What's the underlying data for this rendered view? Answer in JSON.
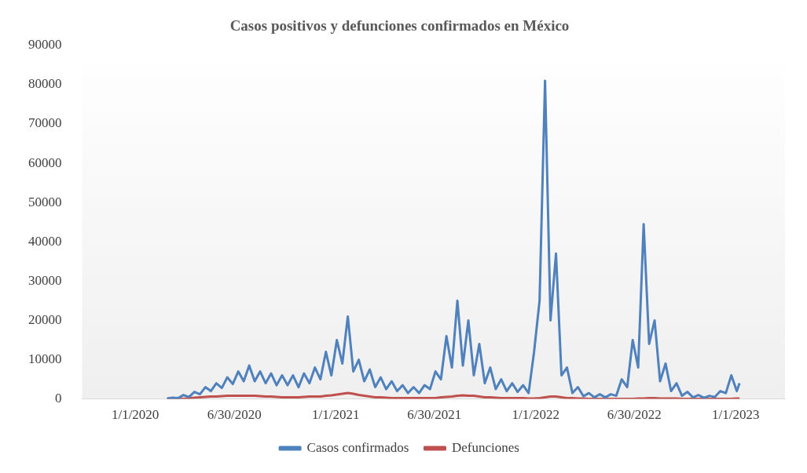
{
  "chart_data": {
    "type": "line",
    "title": "Casos positivos y defunciones confirmados en México",
    "x": [
      "2020-02-28",
      "2020-03-09",
      "2020-03-19",
      "2020-03-29",
      "2020-04-08",
      "2020-04-18",
      "2020-04-28",
      "2020-05-08",
      "2020-05-18",
      "2020-05-28",
      "2020-06-07",
      "2020-06-17",
      "2020-06-27",
      "2020-07-07",
      "2020-07-17",
      "2020-07-27",
      "2020-08-06",
      "2020-08-16",
      "2020-08-26",
      "2020-09-05",
      "2020-09-15",
      "2020-09-25",
      "2020-10-05",
      "2020-10-15",
      "2020-10-25",
      "2020-11-04",
      "2020-11-14",
      "2020-11-24",
      "2020-12-04",
      "2020-12-14",
      "2020-12-24",
      "2021-01-03",
      "2021-01-13",
      "2021-01-23",
      "2021-02-02",
      "2021-02-12",
      "2021-02-22",
      "2021-03-04",
      "2021-03-14",
      "2021-03-24",
      "2021-04-03",
      "2021-04-13",
      "2021-04-23",
      "2021-05-03",
      "2021-05-13",
      "2021-05-23",
      "2021-06-02",
      "2021-06-12",
      "2021-06-22",
      "2021-07-02",
      "2021-07-12",
      "2021-07-22",
      "2021-08-01",
      "2021-08-11",
      "2021-08-21",
      "2021-08-31",
      "2021-09-10",
      "2021-09-20",
      "2021-09-30",
      "2021-10-10",
      "2021-10-20",
      "2021-10-30",
      "2021-11-09",
      "2021-11-19",
      "2021-11-29",
      "2021-12-09",
      "2021-12-19",
      "2021-12-29",
      "2022-01-08",
      "2022-01-18",
      "2022-01-28",
      "2022-02-07",
      "2022-02-17",
      "2022-02-27",
      "2022-03-09",
      "2022-03-19",
      "2022-03-29",
      "2022-04-08",
      "2022-04-18",
      "2022-04-28",
      "2022-05-08",
      "2022-05-18",
      "2022-05-28",
      "2022-06-07",
      "2022-06-17",
      "2022-06-27",
      "2022-07-07",
      "2022-07-17",
      "2022-07-27",
      "2022-08-06",
      "2022-08-16",
      "2022-08-26",
      "2022-09-05",
      "2022-09-15",
      "2022-09-25",
      "2022-10-05",
      "2022-10-15",
      "2022-10-25",
      "2022-11-04",
      "2022-11-14",
      "2022-11-24",
      "2022-12-04",
      "2022-12-14",
      "2022-12-24",
      "2023-01-03",
      "2023-01-08"
    ],
    "series": [
      {
        "name": "Casos confirmados",
        "color": "#4f81bd",
        "values": [
          100,
          300,
          200,
          1000,
          500,
          1800,
          1200,
          3000,
          2000,
          4000,
          2800,
          5500,
          3800,
          7000,
          4500,
          8500,
          4500,
          7000,
          4000,
          6500,
          3500,
          6000,
          3500,
          6000,
          3000,
          6500,
          4000,
          8000,
          5000,
          12000,
          6000,
          15000,
          9000,
          21000,
          7000,
          10000,
          4500,
          7500,
          3000,
          5500,
          2500,
          4500,
          2000,
          3500,
          1500,
          3000,
          1500,
          3500,
          2500,
          7000,
          5000,
          16000,
          8000,
          25000,
          8500,
          20000,
          6000,
          14000,
          4000,
          8000,
          2500,
          5000,
          2000,
          4000,
          1800,
          3500,
          1500,
          12000,
          25000,
          81000,
          20000,
          37000,
          6000,
          8000,
          1500,
          3000,
          700,
          1500,
          400,
          1200,
          400,
          1200,
          800,
          5000,
          3000,
          15000,
          8000,
          44500,
          14000,
          20000,
          4500,
          9000,
          2000,
          4000,
          800,
          1800,
          400,
          1000,
          300,
          800,
          500,
          2000,
          1500,
          6000,
          2000,
          4000
        ]
      },
      {
        "name": "Defunciones",
        "color": "#c0504d",
        "values": [
          0,
          0,
          0,
          0,
          200,
          300,
          400,
          500,
          600,
          600,
          700,
          800,
          800,
          800,
          800,
          800,
          800,
          700,
          600,
          600,
          500,
          400,
          400,
          400,
          400,
          500,
          600,
          600,
          600,
          800,
          900,
          1100,
          1300,
          1500,
          1300,
          1000,
          800,
          600,
          400,
          400,
          300,
          200,
          200,
          200,
          200,
          200,
          200,
          200,
          200,
          200,
          400,
          500,
          600,
          800,
          900,
          800,
          800,
          600,
          400,
          400,
          300,
          200,
          200,
          200,
          200,
          200,
          100,
          100,
          200,
          400,
          600,
          600,
          400,
          200,
          200,
          100,
          100,
          0,
          0,
          0,
          0,
          0,
          0,
          0,
          0,
          0,
          100,
          100,
          200,
          200,
          100,
          100,
          100,
          100,
          0,
          0,
          0,
          0,
          0,
          0,
          0,
          0,
          0,
          0,
          100,
          100
        ]
      }
    ],
    "xlim": [
      "2019-09-26",
      "2023-04-01"
    ],
    "xticks": [
      {
        "value": "2020-01-01",
        "label": "1/1/2020"
      },
      {
        "value": "2020-06-30",
        "label": "6/30/2020"
      },
      {
        "value": "2021-01-01",
        "label": "1/1/2021"
      },
      {
        "value": "2021-06-30",
        "label": "6/30/2021"
      },
      {
        "value": "2022-01-01",
        "label": "1/1/2022"
      },
      {
        "value": "2022-06-30",
        "label": "6/30/2022"
      },
      {
        "value": "2023-01-01",
        "label": "1/1/2023"
      }
    ],
    "ylim": [
      0,
      90000
    ],
    "yticks": [
      0,
      10000,
      20000,
      30000,
      40000,
      50000,
      60000,
      70000,
      80000,
      90000
    ],
    "legend": "bottom",
    "grid": false,
    "marker": "none",
    "line_style": "solid"
  }
}
